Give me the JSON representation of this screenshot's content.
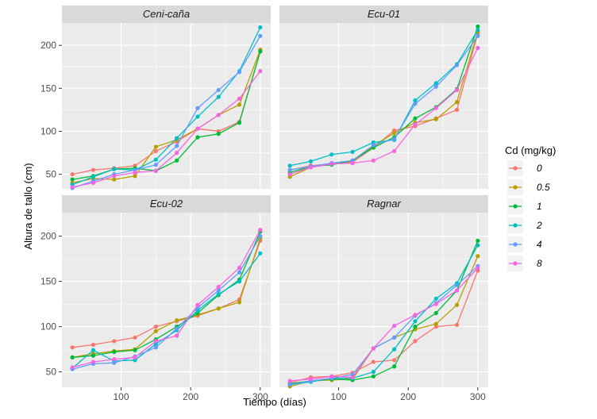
{
  "chart_data": {
    "type": "line",
    "xlabel": "Tiempo (días)",
    "ylabel": "Altura de tallo (cm)",
    "x": [
      30,
      60,
      90,
      120,
      150,
      180,
      210,
      240,
      270,
      300
    ],
    "xticks": [
      100,
      200,
      300
    ],
    "yticks": [
      50,
      100,
      150,
      200
    ],
    "xlim": [
      15,
      315
    ],
    "ylim": [
      33,
      226
    ],
    "grid": true,
    "legend": {
      "title": "Cd (mg/kg)",
      "placement": "right",
      "entries": [
        "0",
        "0.5",
        "1",
        "2",
        "4",
        "8"
      ]
    },
    "colors": {
      "0": "#F8766D",
      "0.5": "#B79F00",
      "1": "#00BA38",
      "2": "#00BFC4",
      "4": "#619CFF",
      "8": "#F564E3"
    },
    "panels": [
      {
        "title": "Ceni-caña",
        "series": [
          {
            "name": "0",
            "values": [
              50,
              55,
              57,
              60,
              77,
              88,
              103,
              100,
              111,
              193
            ]
          },
          {
            "name": "0.5",
            "values": [
              40,
              45,
              44,
              48,
              82,
              90,
              103,
              119,
              131,
              195
            ]
          },
          {
            "name": "1",
            "values": [
              44,
              48,
              56,
              57,
              54,
              66,
              93,
              97,
              110,
              193
            ]
          },
          {
            "name": "2",
            "values": [
              38,
              47,
              56,
              55,
              67,
              92,
              117,
              140,
              170,
              221
            ]
          },
          {
            "name": "4",
            "values": [
              34,
              42,
              50,
              55,
              61,
              83,
              127,
              148,
              169,
              211
            ]
          },
          {
            "name": "8",
            "values": [
              35,
              40,
              48,
              52,
              54,
              75,
              103,
              119,
              138,
              170
            ]
          }
        ]
      },
      {
        "title": "Ecu-01",
        "series": [
          {
            "name": "0",
            "values": [
              55,
              60,
              62,
              64,
              81,
              101,
              106,
              115,
              125,
              214
            ]
          },
          {
            "name": "0.5",
            "values": [
              47,
              58,
              62,
              65,
              83,
              98,
              110,
              114,
              134,
              216
            ]
          },
          {
            "name": "1",
            "values": [
              52,
              59,
              61,
              66,
              81,
              93,
              115,
              128,
              149,
              222
            ]
          },
          {
            "name": "2",
            "values": [
              60,
              65,
              73,
              76,
              87,
              90,
              136,
              156,
              178,
              218
            ]
          },
          {
            "name": "4",
            "values": [
              55,
              59,
              63,
              66,
              84,
              91,
              132,
              152,
              177,
              211
            ]
          },
          {
            "name": "8",
            "values": [
              50,
              58,
              62,
              63,
              66,
              77,
              108,
              127,
              148,
              197
            ]
          }
        ]
      },
      {
        "title": "Ecu-02",
        "series": [
          {
            "name": "0",
            "values": [
              77,
              80,
              84,
              88,
              100,
              106,
              112,
              120,
              130,
              195
            ]
          },
          {
            "name": "0.5",
            "values": [
              66,
              70,
              73,
              75,
              95,
              107,
              113,
              120,
              127,
              198
            ]
          },
          {
            "name": "1",
            "values": [
              66,
              68,
              72,
              74,
              86,
              100,
              115,
              135,
              152,
              205
            ]
          },
          {
            "name": "2",
            "values": [
              54,
              74,
              62,
              63,
              81,
              96,
              118,
              136,
              150,
              181
            ]
          },
          {
            "name": "4",
            "values": [
              53,
              59,
              60,
              67,
              77,
              98,
              121,
              140,
              160,
              200
            ]
          },
          {
            "name": "8",
            "values": [
              55,
              61,
              64,
              66,
              84,
              90,
              124,
              144,
              165,
              207
            ]
          }
        ]
      },
      {
        "title": "Ragnar",
        "series": [
          {
            "name": "0",
            "values": [
              38,
              44,
              45,
              49,
              61,
              63,
              84,
              100,
              102,
              162
            ]
          },
          {
            "name": "0.5",
            "values": [
              34,
              40,
              41,
              42,
              76,
              88,
              97,
              103,
              124,
              178
            ]
          },
          {
            "name": "1",
            "values": [
              37,
              40,
              42,
              41,
              45,
              56,
              100,
              115,
              140,
              195
            ]
          },
          {
            "name": "2",
            "values": [
              36,
              39,
              43,
              43,
              50,
              75,
              106,
              131,
              148,
              190
            ]
          },
          {
            "name": "4",
            "values": [
              36,
              40,
              43,
              47,
              76,
              88,
              112,
              126,
              146,
              167
            ]
          },
          {
            "name": "8",
            "values": [
              40,
              42,
              45,
              44,
              76,
              101,
              113,
              125,
              140,
              165
            ]
          }
        ]
      }
    ]
  }
}
